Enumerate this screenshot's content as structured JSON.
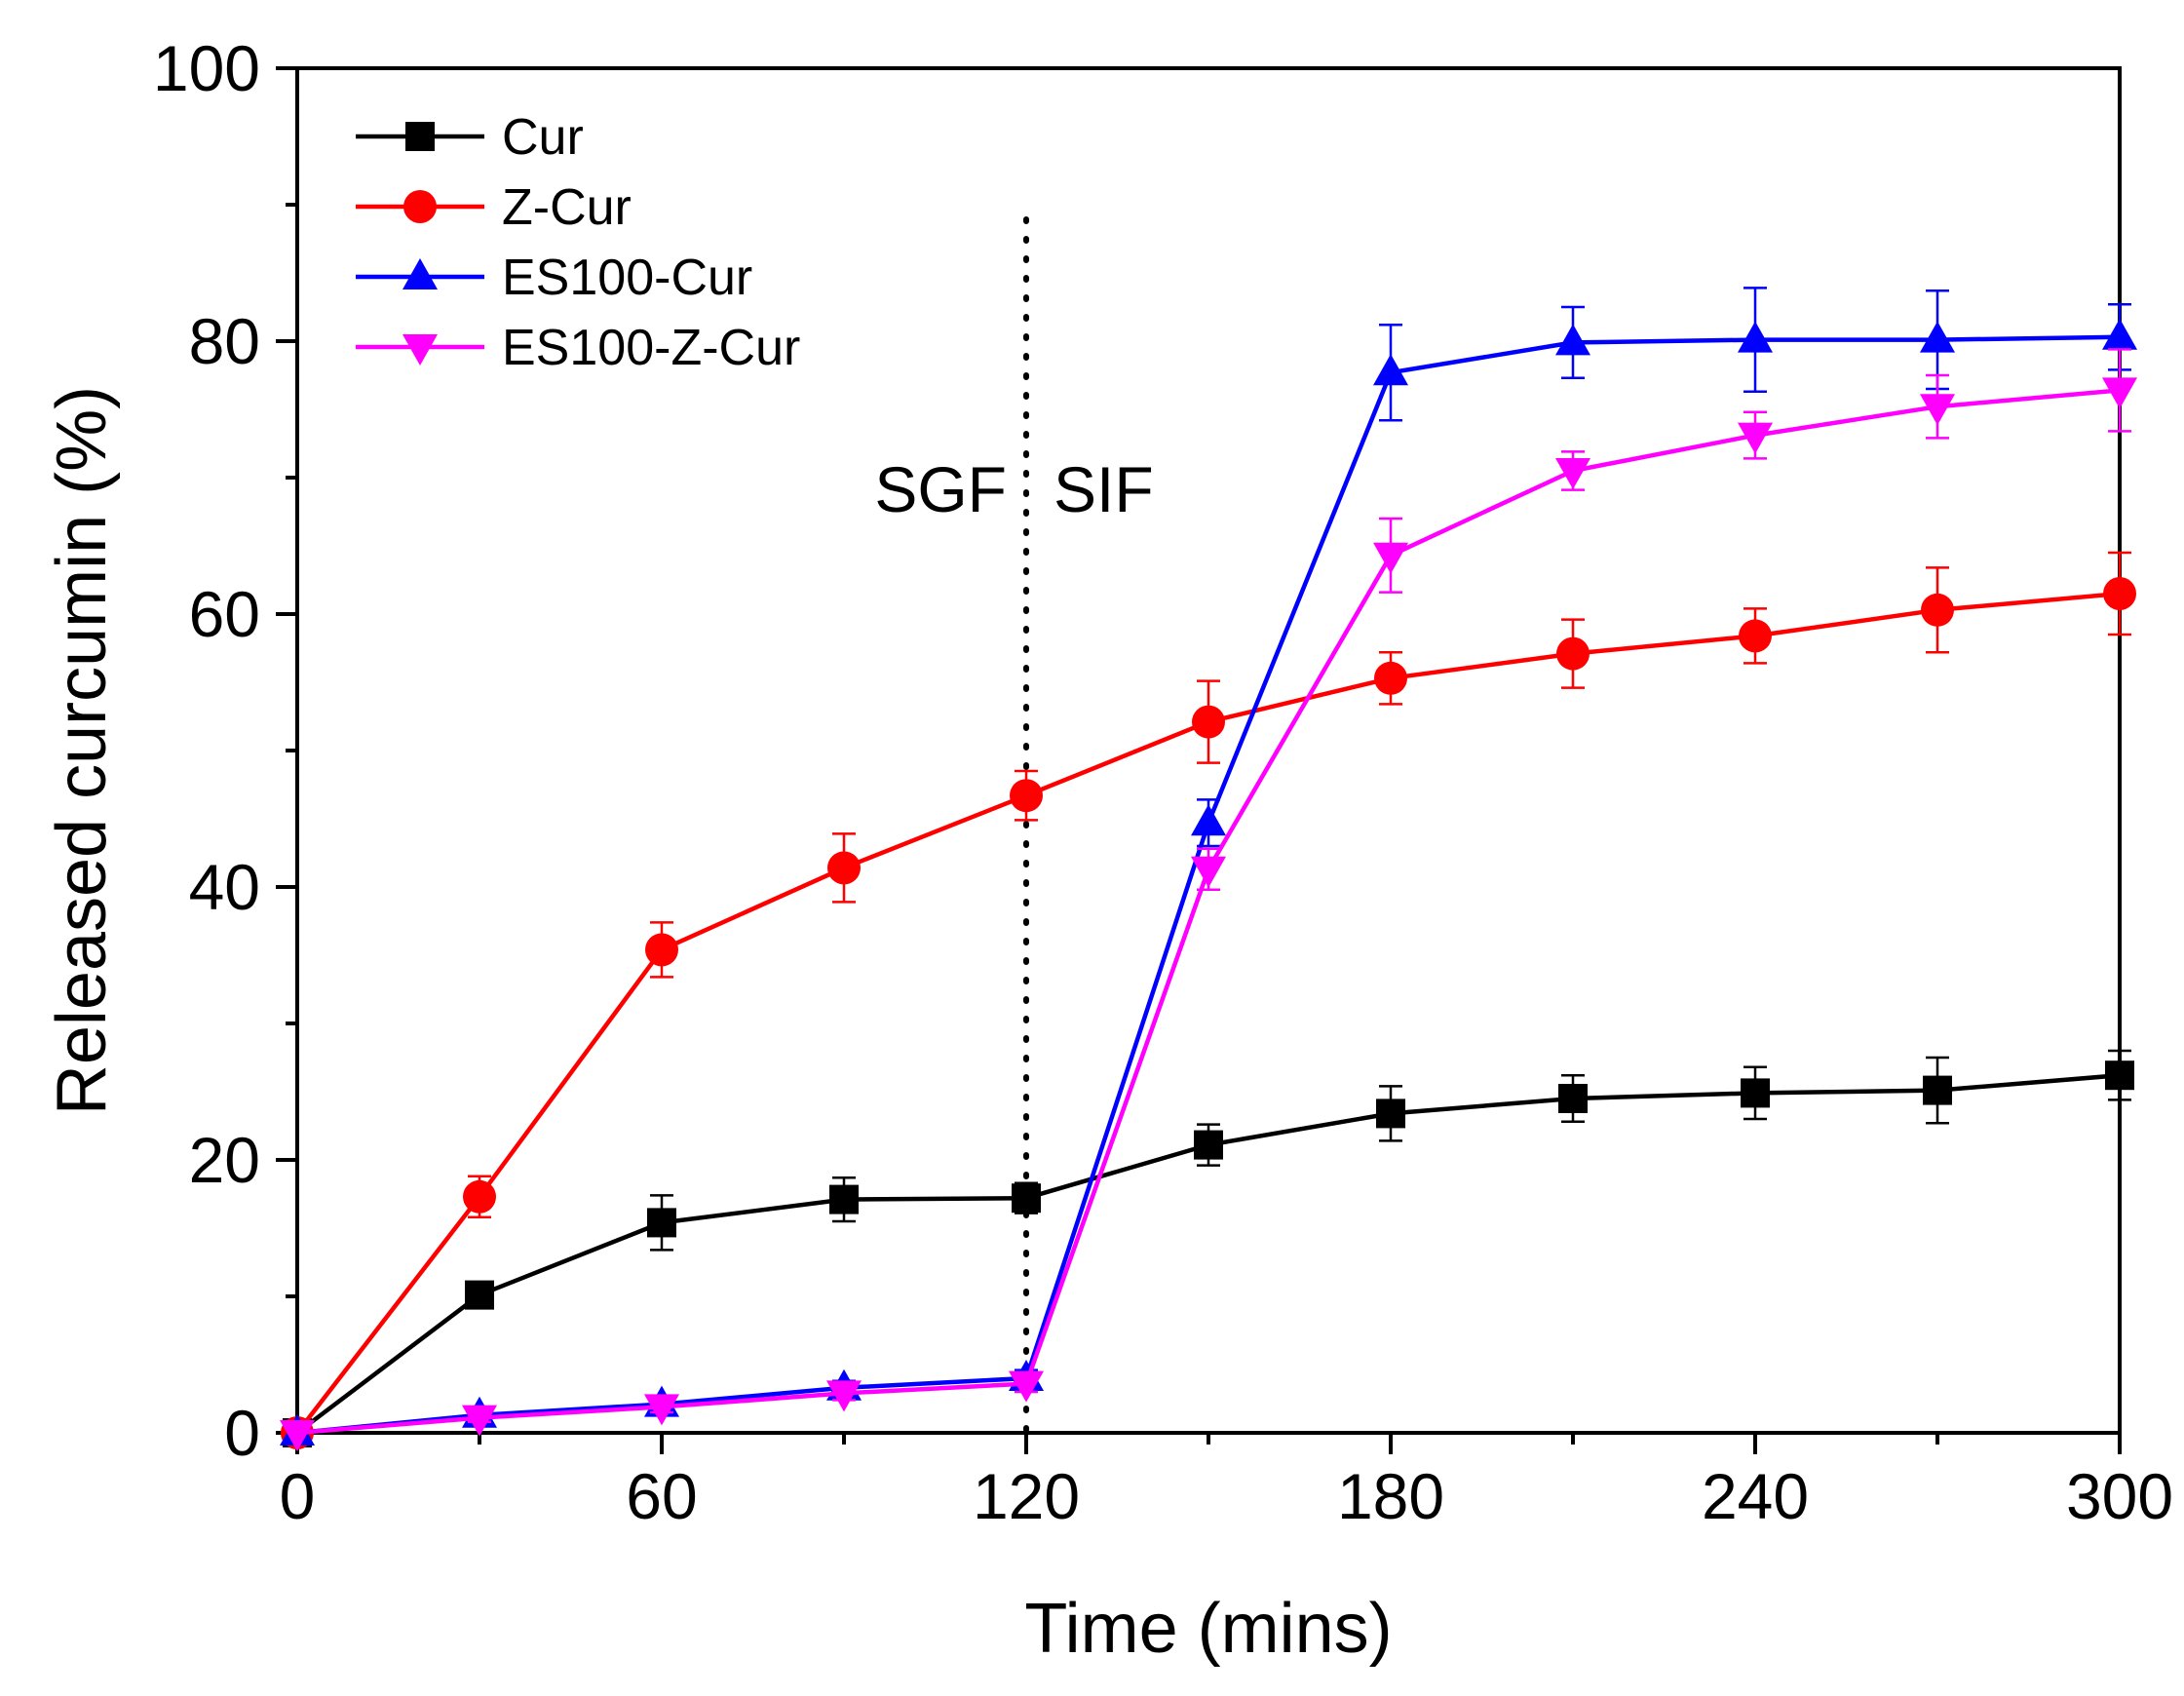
{
  "chart_data": {
    "type": "line",
    "title": "",
    "xlabel": "Time (mins)",
    "ylabel": "Released curcumin (%)",
    "xlim": [
      0,
      300
    ],
    "ylim": [
      0,
      100
    ],
    "xticks": [
      0,
      60,
      120,
      180,
      240,
      300
    ],
    "yticks": [
      0,
      20,
      40,
      60,
      80,
      100
    ],
    "x": [
      0,
      30,
      60,
      90,
      120,
      150,
      180,
      210,
      240,
      270,
      300
    ],
    "legend_position": "top-left",
    "grid": false,
    "annotations": [
      {
        "text": "SGF",
        "x": 120,
        "side": "left"
      },
      {
        "text": "SIF",
        "x": 120,
        "side": "right"
      }
    ],
    "divider_x": 120,
    "series": [
      {
        "name": "Cur",
        "color": "#000000",
        "marker": "square",
        "values": [
          0,
          10.1,
          15.4,
          17.1,
          17.2,
          21.1,
          23.4,
          24.5,
          24.9,
          25.1,
          26.2
        ],
        "errors": [
          0,
          0.6,
          2.0,
          1.6,
          1.1,
          1.5,
          2.0,
          1.7,
          1.9,
          2.4,
          1.8
        ]
      },
      {
        "name": "Z-Cur",
        "color": "#ff0000",
        "marker": "circle",
        "values": [
          0,
          17.3,
          35.4,
          41.4,
          46.7,
          52.1,
          55.3,
          57.1,
          58.4,
          60.3,
          61.5
        ],
        "errors": [
          0,
          1.5,
          2.0,
          2.5,
          1.8,
          3.0,
          1.9,
          2.5,
          2.0,
          3.1,
          3.0
        ]
      },
      {
        "name": "ES100-Cur",
        "color": "#0000ff",
        "marker": "triangle-up",
        "values": [
          0,
          1.3,
          2.1,
          3.3,
          4.0,
          44.7,
          77.7,
          79.9,
          80.1,
          80.1,
          80.3
        ],
        "errors": [
          0,
          0.3,
          0.4,
          0.5,
          0.6,
          1.7,
          3.5,
          2.6,
          3.8,
          3.6,
          2.4
        ]
      },
      {
        "name": "ES100-Z-Cur",
        "color": "#ff00ff",
        "marker": "triangle-down",
        "values": [
          0,
          1.1,
          1.9,
          2.9,
          3.6,
          41.3,
          64.3,
          70.5,
          73.1,
          75.2,
          76.4
        ],
        "errors": [
          0,
          0.3,
          0.4,
          0.5,
          0.6,
          1.5,
          2.7,
          1.4,
          1.7,
          2.3,
          3.0
        ]
      }
    ]
  }
}
